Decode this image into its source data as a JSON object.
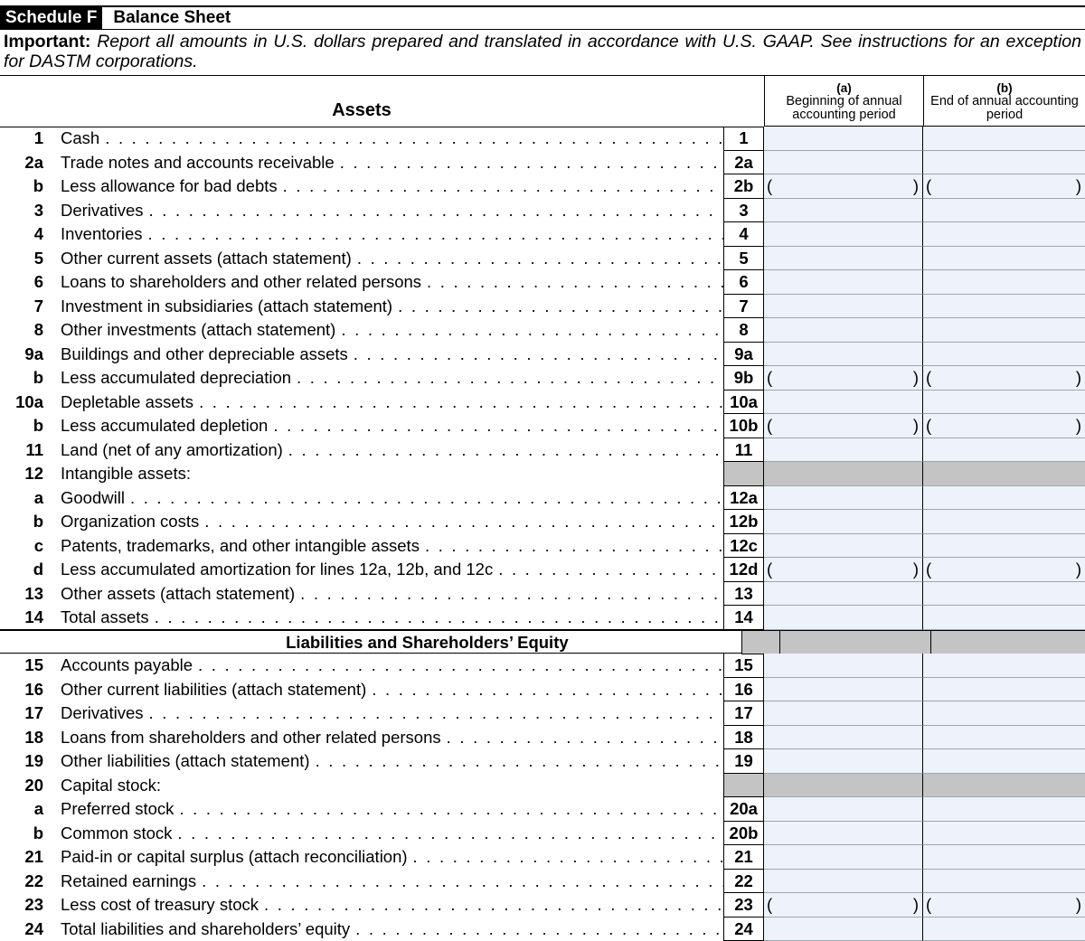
{
  "header": {
    "schedule": "Schedule F",
    "title": "Balance Sheet"
  },
  "important": {
    "label": "Important:",
    "text": "Report all amounts in U.S. dollars prepared and translated in accordance with U.S. GAAP. See instructions for an exception for DASTM corporations."
  },
  "columns": {
    "assets_heading": "Assets",
    "a_letter": "(a)",
    "a_label": "Beginning of annual accounting period",
    "b_letter": "(b)",
    "b_label": "End of annual accounting period"
  },
  "colors": {
    "input_fill": "#eef2fb",
    "shaded": "#c4c4c4"
  },
  "rows": [
    {
      "num": "1",
      "label": "Cash",
      "box": "1",
      "type": "input"
    },
    {
      "num": "2a",
      "label": "Trade notes and accounts receivable",
      "box": "2a",
      "type": "input"
    },
    {
      "num": "b",
      "label": "Less allowance for bad debts",
      "box": "2b",
      "type": "paren"
    },
    {
      "num": "3",
      "label": "Derivatives",
      "box": "3",
      "type": "input"
    },
    {
      "num": "4",
      "label": "Inventories",
      "box": "4",
      "type": "input"
    },
    {
      "num": "5",
      "label": "Other current assets (attach statement)",
      "box": "5",
      "type": "input"
    },
    {
      "num": "6",
      "label": "Loans to shareholders and other related persons",
      "box": "6",
      "type": "input"
    },
    {
      "num": "7",
      "label": "Investment in subsidiaries (attach statement)",
      "box": "7",
      "type": "input"
    },
    {
      "num": "8",
      "label": "Other investments (attach statement)",
      "box": "8",
      "type": "input"
    },
    {
      "num": "9a",
      "label": "Buildings and other depreciable assets",
      "box": "9a",
      "type": "input"
    },
    {
      "num": "b",
      "label": "Less accumulated depreciation",
      "box": "9b",
      "type": "paren"
    },
    {
      "num": "10a",
      "label": "Depletable assets",
      "box": "10a",
      "type": "input"
    },
    {
      "num": "b",
      "label": "Less accumulated depletion",
      "box": "10b",
      "type": "paren"
    },
    {
      "num": "11",
      "label": "Land (net of any amortization)",
      "box": "11",
      "type": "input"
    },
    {
      "num": "12",
      "label": "Intangible assets:",
      "box": "",
      "type": "shaded",
      "nodots": true
    },
    {
      "num": "a",
      "label": "Goodwill",
      "box": "12a",
      "type": "input"
    },
    {
      "num": "b",
      "label": "Organization costs",
      "box": "12b",
      "type": "input"
    },
    {
      "num": "c",
      "label": "Patents, trademarks, and other intangible assets",
      "box": "12c",
      "type": "input"
    },
    {
      "num": "d",
      "label": "Less accumulated amortization for lines 12a, 12b, and 12c",
      "box": "12d",
      "type": "paren"
    },
    {
      "num": "13",
      "label": "Other assets (attach statement)",
      "box": "13",
      "type": "input"
    },
    {
      "num": "14",
      "label": "Total assets",
      "box": "14",
      "type": "input"
    },
    {
      "num": "",
      "label": "Liabilities and Shareholders’ Equity",
      "box": "",
      "type": "shaded",
      "section": true
    },
    {
      "num": "15",
      "label": "Accounts payable",
      "box": "15",
      "type": "input"
    },
    {
      "num": "16",
      "label": "Other current liabilities (attach statement)",
      "box": "16",
      "type": "input"
    },
    {
      "num": "17",
      "label": "Derivatives",
      "box": "17",
      "type": "input"
    },
    {
      "num": "18",
      "label": "Loans from shareholders and other related persons",
      "box": "18",
      "type": "input"
    },
    {
      "num": "19",
      "label": "Other liabilities (attach statement)",
      "box": "19",
      "type": "input"
    },
    {
      "num": "20",
      "label": "Capital stock:",
      "box": "",
      "type": "shaded",
      "nodots": true
    },
    {
      "num": "a",
      "label": "Preferred stock",
      "box": "20a",
      "type": "input"
    },
    {
      "num": "b",
      "label": "Common stock",
      "box": "20b",
      "type": "input"
    },
    {
      "num": "21",
      "label": "Paid-in or capital surplus (attach reconciliation)",
      "box": "21",
      "type": "input"
    },
    {
      "num": "22",
      "label": "Retained earnings",
      "box": "22",
      "type": "input"
    },
    {
      "num": "23",
      "label": "Less cost of treasury stock",
      "box": "23",
      "type": "paren"
    },
    {
      "num": "24",
      "label": "Total liabilities and shareholders’ equity",
      "box": "24",
      "type": "input"
    }
  ]
}
